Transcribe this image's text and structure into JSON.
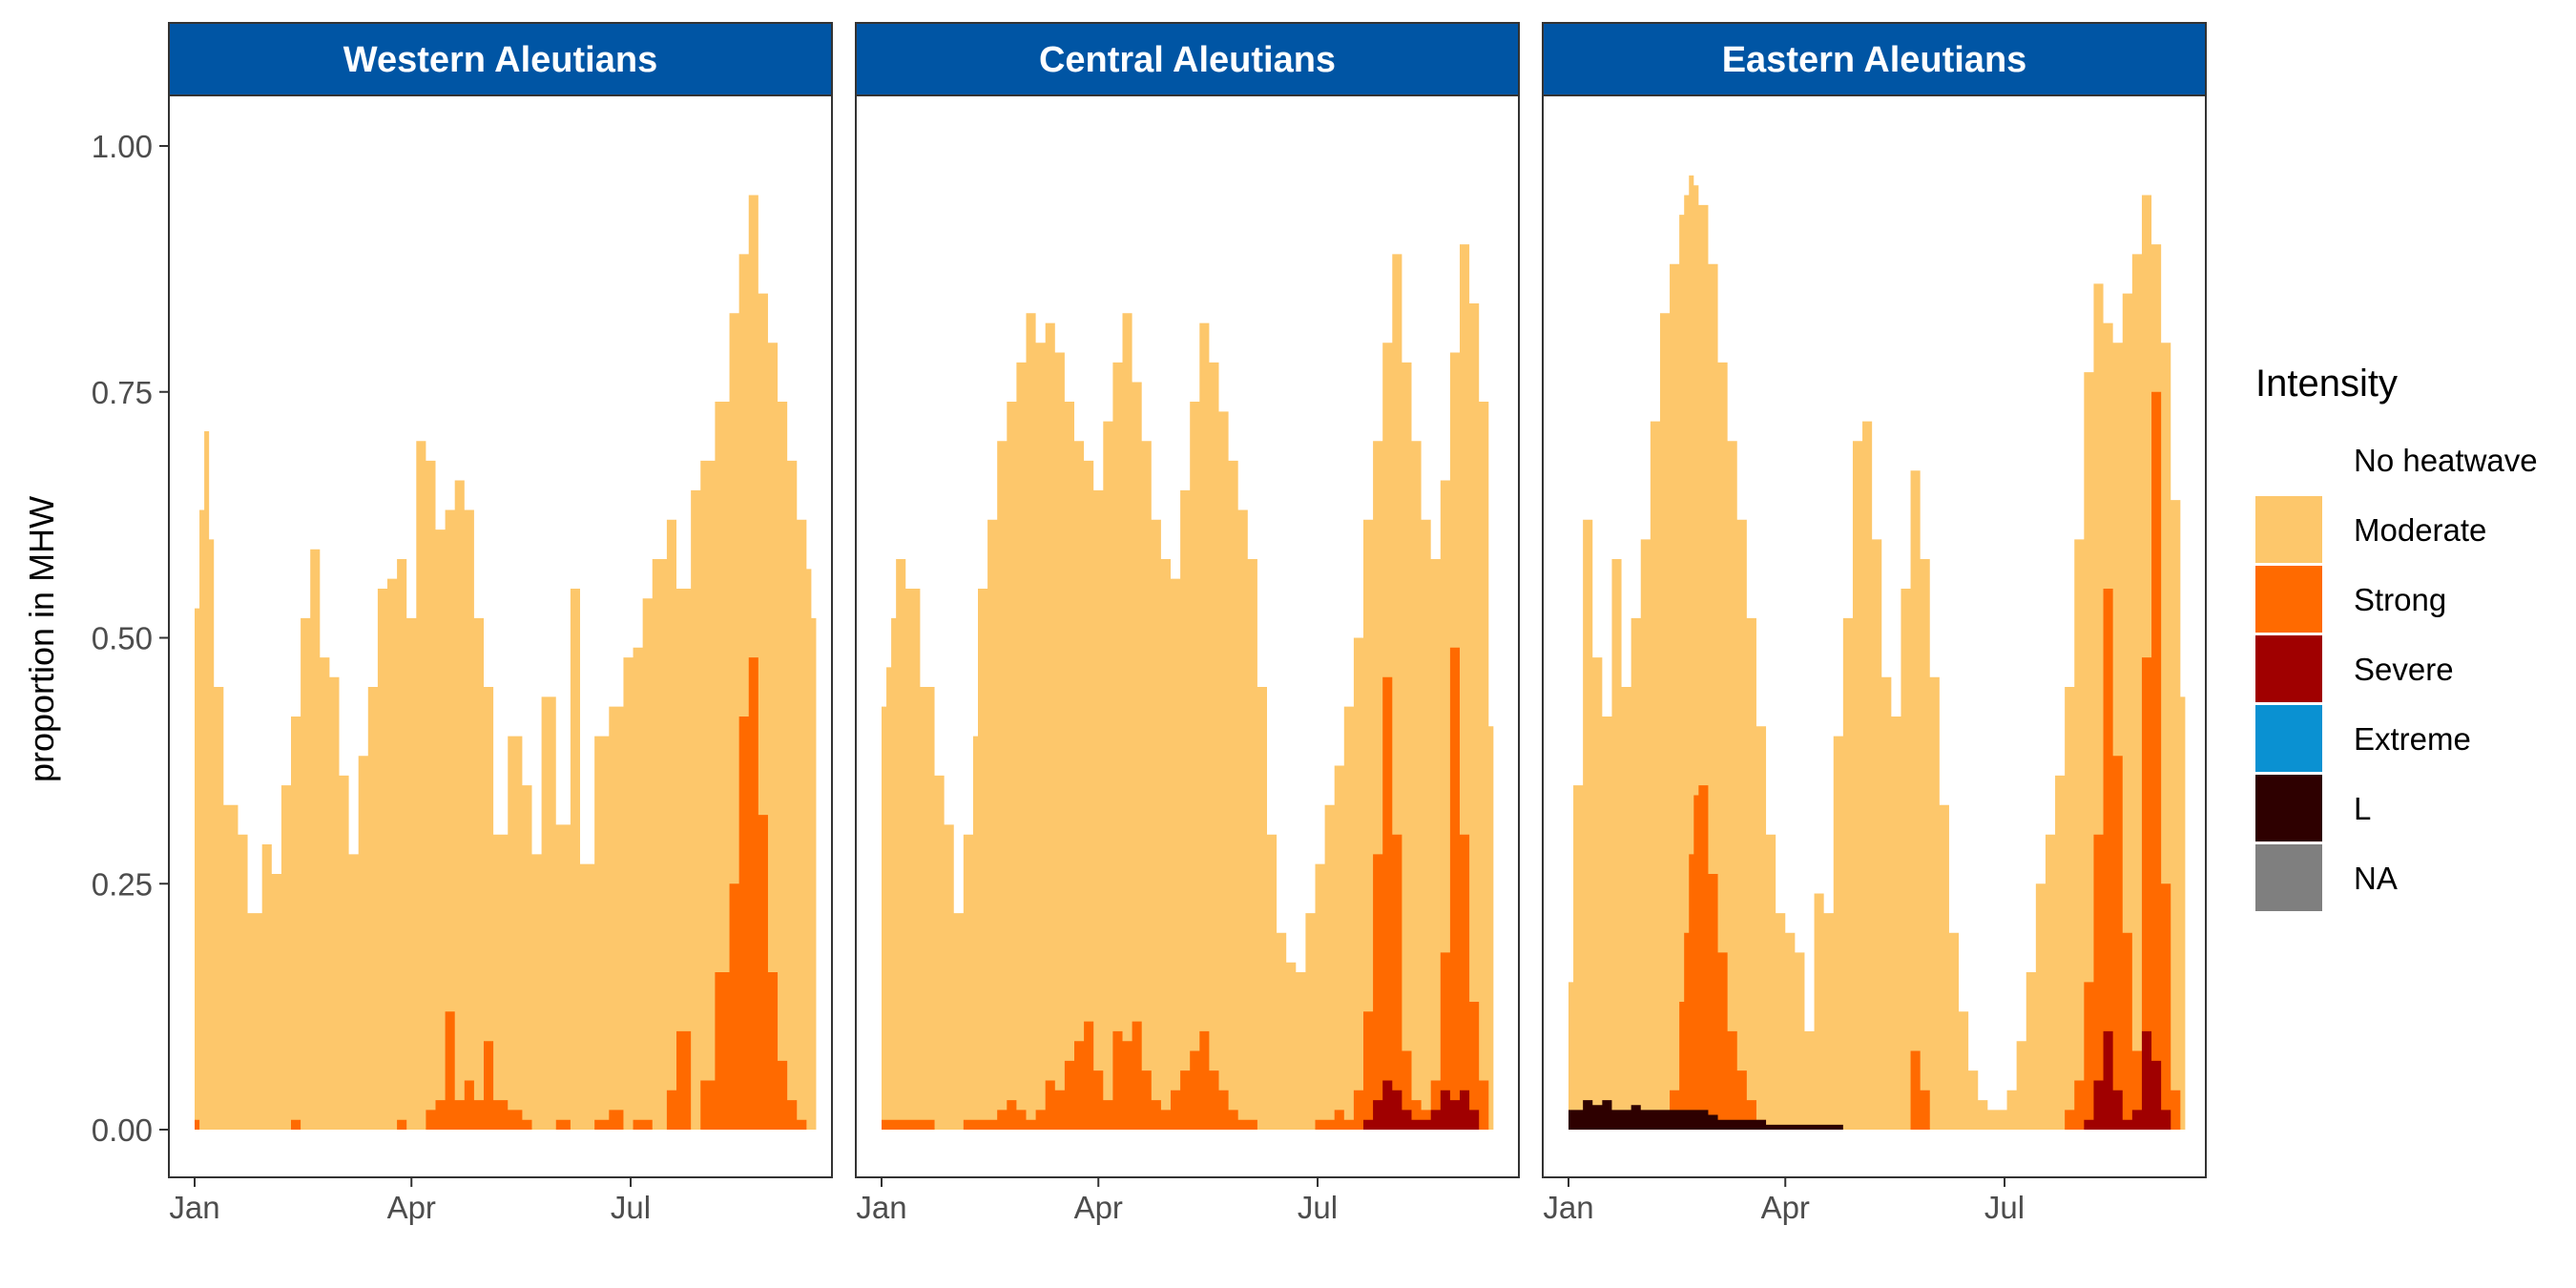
{
  "chart_data": {
    "type": "area",
    "stacked": true,
    "ylabel": "proportion in MHW",
    "xlabel": "",
    "ylim": [
      0,
      1.05
    ],
    "y_ticks": [
      "0.00",
      "0.25",
      "0.50",
      "0.75",
      "1.00"
    ],
    "y_tick_values": [
      0,
      0.25,
      0.5,
      0.75,
      1.0
    ],
    "x_range_days": [
      0,
      290
    ],
    "x_ticks": [
      "Jan",
      "Apr",
      "Jul"
    ],
    "x_tick_days": [
      0,
      90,
      181
    ],
    "grid": false,
    "legend": {
      "title": "Intensity",
      "position": "right",
      "entries": [
        {
          "label": "No heatwave",
          "color": "#FFFFFF"
        },
        {
          "label": "Moderate",
          "color": "#FDC76B"
        },
        {
          "label": "Strong",
          "color": "#FF6A00"
        },
        {
          "label": "Severe",
          "color": "#A00000"
        },
        {
          "label": "Extreme",
          "color": "#0A91D2"
        },
        {
          "label": "L",
          "color": "#2E0000"
        },
        {
          "label": "NA",
          "color": "#7F7F7F"
        }
      ]
    },
    "colors": {
      "strip": "#0055A4",
      "moderate": "#FDC76B",
      "strong": "#FF6A00",
      "severe": "#A00000",
      "extreme": "#0A91D2",
      "l": "#2E0000"
    },
    "panels": [
      {
        "title": "Western Aleutians",
        "days": [
          0,
          2,
          4,
          6,
          8,
          12,
          18,
          22,
          28,
          32,
          36,
          40,
          44,
          48,
          52,
          56,
          60,
          64,
          68,
          72,
          76,
          80,
          84,
          88,
          92,
          96,
          100,
          104,
          108,
          112,
          116,
          120,
          124,
          130,
          136,
          140,
          144,
          150,
          156,
          160,
          166,
          172,
          178,
          182,
          186,
          190,
          196,
          200,
          206,
          210,
          216,
          222,
          226,
          230,
          234,
          238,
          242,
          246,
          250,
          254,
          256
        ],
        "total": [
          0.53,
          0.63,
          0.71,
          0.6,
          0.45,
          0.33,
          0.3,
          0.22,
          0.29,
          0.26,
          0.35,
          0.42,
          0.52,
          0.59,
          0.48,
          0.46,
          0.36,
          0.28,
          0.38,
          0.45,
          0.55,
          0.56,
          0.58,
          0.52,
          0.7,
          0.68,
          0.61,
          0.63,
          0.66,
          0.63,
          0.52,
          0.45,
          0.3,
          0.4,
          0.35,
          0.28,
          0.44,
          0.31,
          0.55,
          0.27,
          0.4,
          0.43,
          0.48,
          0.49,
          0.54,
          0.58,
          0.62,
          0.55,
          0.65,
          0.68,
          0.74,
          0.83,
          0.89,
          0.95,
          0.85,
          0.8,
          0.74,
          0.68,
          0.62,
          0.57,
          0.52
        ],
        "strong": [
          0.01,
          0.0,
          0.0,
          0.0,
          0.0,
          0.0,
          0.0,
          0.0,
          0.0,
          0.0,
          0.0,
          0.01,
          0.0,
          0.0,
          0.0,
          0.0,
          0.0,
          0.0,
          0.0,
          0.0,
          0.0,
          0.0,
          0.01,
          0.0,
          0.0,
          0.02,
          0.03,
          0.12,
          0.03,
          0.05,
          0.03,
          0.09,
          0.03,
          0.02,
          0.01,
          0.0,
          0.0,
          0.01,
          0.0,
          0.0,
          0.01,
          0.02,
          0.0,
          0.01,
          0.01,
          0.0,
          0.04,
          0.1,
          0.0,
          0.05,
          0.16,
          0.25,
          0.42,
          0.48,
          0.32,
          0.16,
          0.07,
          0.03,
          0.01,
          0.0,
          0.0
        ]
      },
      {
        "title": "Central Aleutians",
        "days": [
          0,
          2,
          4,
          6,
          10,
          16,
          22,
          26,
          30,
          34,
          38,
          40,
          44,
          48,
          52,
          56,
          60,
          64,
          68,
          72,
          76,
          80,
          84,
          88,
          92,
          96,
          100,
          104,
          108,
          112,
          116,
          120,
          124,
          128,
          132,
          136,
          140,
          144,
          148,
          152,
          156,
          160,
          164,
          168,
          172,
          176,
          180,
          184,
          188,
          192,
          196,
          200,
          204,
          208,
          212,
          216,
          220,
          224,
          228,
          232,
          236,
          240,
          244,
          248,
          252
        ],
        "total": [
          0.43,
          0.47,
          0.52,
          0.58,
          0.55,
          0.45,
          0.36,
          0.31,
          0.22,
          0.3,
          0.4,
          0.55,
          0.62,
          0.7,
          0.74,
          0.78,
          0.83,
          0.8,
          0.82,
          0.79,
          0.74,
          0.7,
          0.68,
          0.65,
          0.72,
          0.78,
          0.83,
          0.76,
          0.7,
          0.62,
          0.58,
          0.56,
          0.65,
          0.74,
          0.82,
          0.78,
          0.73,
          0.68,
          0.63,
          0.58,
          0.45,
          0.3,
          0.2,
          0.17,
          0.16,
          0.22,
          0.27,
          0.33,
          0.37,
          0.43,
          0.5,
          0.62,
          0.7,
          0.8,
          0.89,
          0.78,
          0.7,
          0.62,
          0.58,
          0.66,
          0.79,
          0.9,
          0.84,
          0.74,
          0.41
        ],
        "strong": [
          0.01,
          0.01,
          0.01,
          0.01,
          0.01,
          0.01,
          0.0,
          0.0,
          0.0,
          0.01,
          0.01,
          0.01,
          0.01,
          0.02,
          0.03,
          0.02,
          0.01,
          0.02,
          0.05,
          0.04,
          0.07,
          0.09,
          0.11,
          0.06,
          0.03,
          0.1,
          0.09,
          0.11,
          0.06,
          0.03,
          0.02,
          0.04,
          0.06,
          0.08,
          0.1,
          0.06,
          0.04,
          0.02,
          0.01,
          0.01,
          0.0,
          0.0,
          0.0,
          0.0,
          0.0,
          0.0,
          0.01,
          0.01,
          0.02,
          0.01,
          0.04,
          0.12,
          0.28,
          0.46,
          0.3,
          0.08,
          0.03,
          0.02,
          0.05,
          0.18,
          0.49,
          0.3,
          0.13,
          0.05,
          0.0
        ],
        "severe": [
          0.0,
          0.0,
          0.0,
          0.0,
          0.0,
          0.0,
          0.0,
          0.0,
          0.0,
          0.0,
          0.0,
          0.0,
          0.0,
          0.0,
          0.0,
          0.0,
          0.0,
          0.0,
          0.0,
          0.0,
          0.0,
          0.0,
          0.0,
          0.0,
          0.0,
          0.0,
          0.0,
          0.0,
          0.0,
          0.0,
          0.0,
          0.0,
          0.0,
          0.0,
          0.0,
          0.0,
          0.0,
          0.0,
          0.0,
          0.0,
          0.0,
          0.0,
          0.0,
          0.0,
          0.0,
          0.0,
          0.0,
          0.0,
          0.0,
          0.0,
          0.0,
          0.01,
          0.03,
          0.05,
          0.04,
          0.02,
          0.01,
          0.01,
          0.02,
          0.04,
          0.03,
          0.04,
          0.02,
          0.0,
          0.0
        ]
      },
      {
        "title": "Eastern Aleutians",
        "days": [
          0,
          2,
          6,
          10,
          14,
          18,
          22,
          26,
          30,
          34,
          38,
          42,
          46,
          48,
          50,
          52,
          54,
          58,
          62,
          66,
          70,
          74,
          78,
          82,
          86,
          90,
          94,
          98,
          102,
          106,
          110,
          114,
          118,
          122,
          126,
          130,
          134,
          138,
          142,
          146,
          150,
          154,
          158,
          162,
          166,
          170,
          174,
          178,
          182,
          186,
          190,
          194,
          198,
          202,
          206,
          210,
          214,
          218,
          222,
          226,
          230,
          234,
          238,
          242,
          246,
          250,
          254
        ],
        "total": [
          0.15,
          0.35,
          0.62,
          0.48,
          0.42,
          0.58,
          0.45,
          0.52,
          0.6,
          0.72,
          0.83,
          0.88,
          0.93,
          0.95,
          0.97,
          0.96,
          0.94,
          0.88,
          0.78,
          0.7,
          0.62,
          0.52,
          0.41,
          0.3,
          0.22,
          0.2,
          0.18,
          0.1,
          0.24,
          0.22,
          0.4,
          0.52,
          0.7,
          0.72,
          0.6,
          0.46,
          0.42,
          0.55,
          0.67,
          0.58,
          0.46,
          0.33,
          0.2,
          0.12,
          0.06,
          0.03,
          0.02,
          0.02,
          0.04,
          0.09,
          0.16,
          0.25,
          0.3,
          0.36,
          0.45,
          0.6,
          0.77,
          0.86,
          0.82,
          0.8,
          0.85,
          0.89,
          0.95,
          0.9,
          0.8,
          0.64,
          0.44
        ],
        "strong": [
          0.0,
          0.0,
          0.0,
          0.0,
          0.0,
          0.01,
          0.0,
          0.0,
          0.0,
          0.0,
          0.01,
          0.04,
          0.13,
          0.2,
          0.28,
          0.34,
          0.35,
          0.26,
          0.18,
          0.1,
          0.06,
          0.03,
          0.01,
          0.0,
          0.0,
          0.0,
          0.0,
          0.0,
          0.0,
          0.0,
          0.0,
          0.0,
          0.0,
          0.0,
          0.0,
          0.0,
          0.0,
          0.0,
          0.08,
          0.04,
          0.0,
          0.0,
          0.0,
          0.0,
          0.0,
          0.0,
          0.0,
          0.0,
          0.0,
          0.0,
          0.0,
          0.0,
          0.0,
          0.0,
          0.02,
          0.05,
          0.15,
          0.3,
          0.55,
          0.38,
          0.2,
          0.08,
          0.48,
          0.75,
          0.25,
          0.04,
          0.0
        ],
        "severe": [
          0.0,
          0.0,
          0.0,
          0.0,
          0.0,
          0.0,
          0.0,
          0.0,
          0.0,
          0.0,
          0.0,
          0.0,
          0.0,
          0.0,
          0.0,
          0.0,
          0.0,
          0.0,
          0.0,
          0.0,
          0.0,
          0.0,
          0.0,
          0.0,
          0.0,
          0.0,
          0.0,
          0.0,
          0.0,
          0.0,
          0.0,
          0.0,
          0.0,
          0.0,
          0.0,
          0.0,
          0.0,
          0.0,
          0.0,
          0.0,
          0.0,
          0.0,
          0.0,
          0.0,
          0.0,
          0.0,
          0.0,
          0.0,
          0.0,
          0.0,
          0.0,
          0.0,
          0.0,
          0.0,
          0.0,
          0.0,
          0.01,
          0.05,
          0.1,
          0.04,
          0.01,
          0.02,
          0.1,
          0.07,
          0.02,
          0.0,
          0.0
        ],
        "l": [
          0.02,
          0.02,
          0.03,
          0.025,
          0.03,
          0.02,
          0.02,
          0.025,
          0.02,
          0.02,
          0.02,
          0.02,
          0.02,
          0.02,
          0.02,
          0.02,
          0.02,
          0.015,
          0.01,
          0.01,
          0.01,
          0.01,
          0.01,
          0.005,
          0.005,
          0.005,
          0.005,
          0.005,
          0.005,
          0.005,
          0.005,
          0.0,
          0.0,
          0.0,
          0.0,
          0.0,
          0.0,
          0.0,
          0.0,
          0.0,
          0.0,
          0.0,
          0.0,
          0.0,
          0.0,
          0.0,
          0.0,
          0.0,
          0.0,
          0.0,
          0.0,
          0.0,
          0.0,
          0.0,
          0.0,
          0.0,
          0.0,
          0.0,
          0.0,
          0.0,
          0.0,
          0.0,
          0.0,
          0.0,
          0.0,
          0.0,
          0.0
        ]
      }
    ]
  }
}
